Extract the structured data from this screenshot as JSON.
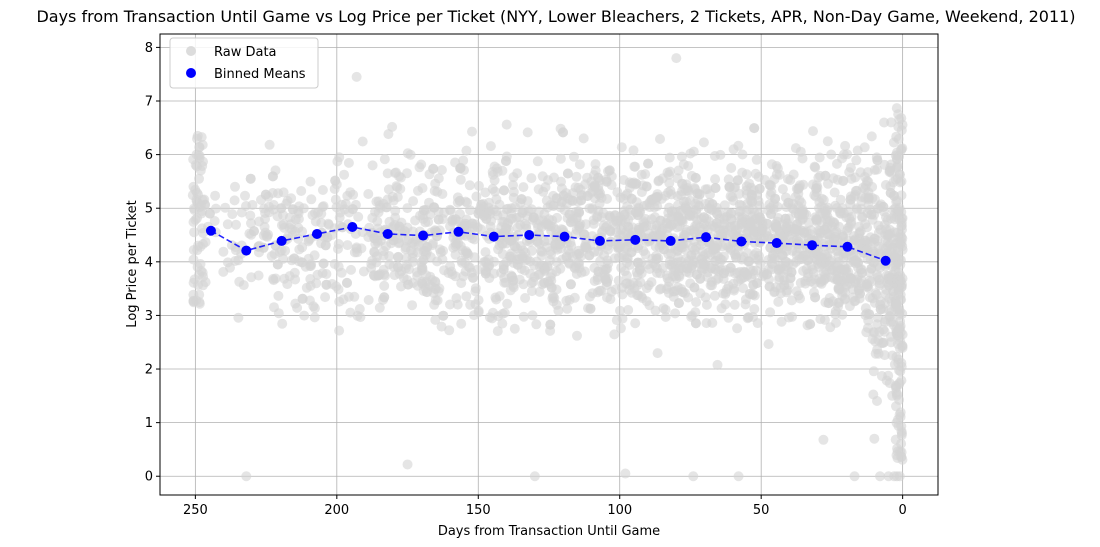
{
  "chart_data": {
    "type": "scatter",
    "title": "Days from Transaction Until Game vs Log Price per Ticket (NYY, Lower Bleachers, 2 Tickets, APR, Non-Day Game, Weekend, 2011)",
    "xlabel": "Days from Transaction Until Game",
    "ylabel": "Log Price per Ticket",
    "xlim": [
      262.5,
      -12.5
    ],
    "ylim": [
      -0.35,
      8.25
    ],
    "x_inverted": true,
    "x_ticks": [
      250,
      200,
      150,
      100,
      50,
      0
    ],
    "y_ticks": [
      0,
      1,
      2,
      3,
      4,
      5,
      6,
      7,
      8
    ],
    "grid": true,
    "legend_position": "top-left",
    "legend": [
      {
        "label": "Raw Data",
        "color": "#d3d3d3",
        "marker": "circle"
      },
      {
        "label": "Binned Means",
        "color": "#0000ff",
        "marker": "circle"
      }
    ],
    "series": [
      {
        "name": "Binned Means",
        "type": "line-scatter",
        "line_style": "dashed",
        "color": "#0000ff",
        "x": [
          244.5,
          232,
          219.5,
          207,
          194.5,
          182,
          169.5,
          157,
          144.5,
          132,
          119.5,
          107,
          94.5,
          82,
          69.5,
          57,
          44.5,
          32,
          19.5,
          6
        ],
        "y": [
          4.58,
          4.21,
          4.39,
          4.52,
          4.65,
          4.52,
          4.49,
          4.56,
          4.47,
          4.5,
          4.47,
          4.39,
          4.41,
          4.39,
          4.46,
          4.38,
          4.35,
          4.31,
          4.28,
          4.02
        ]
      }
    ],
    "raw_data_style": {
      "color": "#d3d3d3",
      "opacity": 0.6
    },
    "raw_data_outliers": {
      "x": [
        232,
        193,
        175,
        130,
        98,
        80,
        74,
        58,
        28,
        17,
        10,
        8,
        5,
        3,
        2,
        1
      ],
      "y": [
        0.0,
        7.45,
        0.22,
        0.0,
        0.05,
        7.8,
        0.0,
        0.0,
        0.68,
        0.0,
        0.7,
        0.0,
        0.0,
        0.0,
        0.0,
        0.0
      ]
    }
  }
}
